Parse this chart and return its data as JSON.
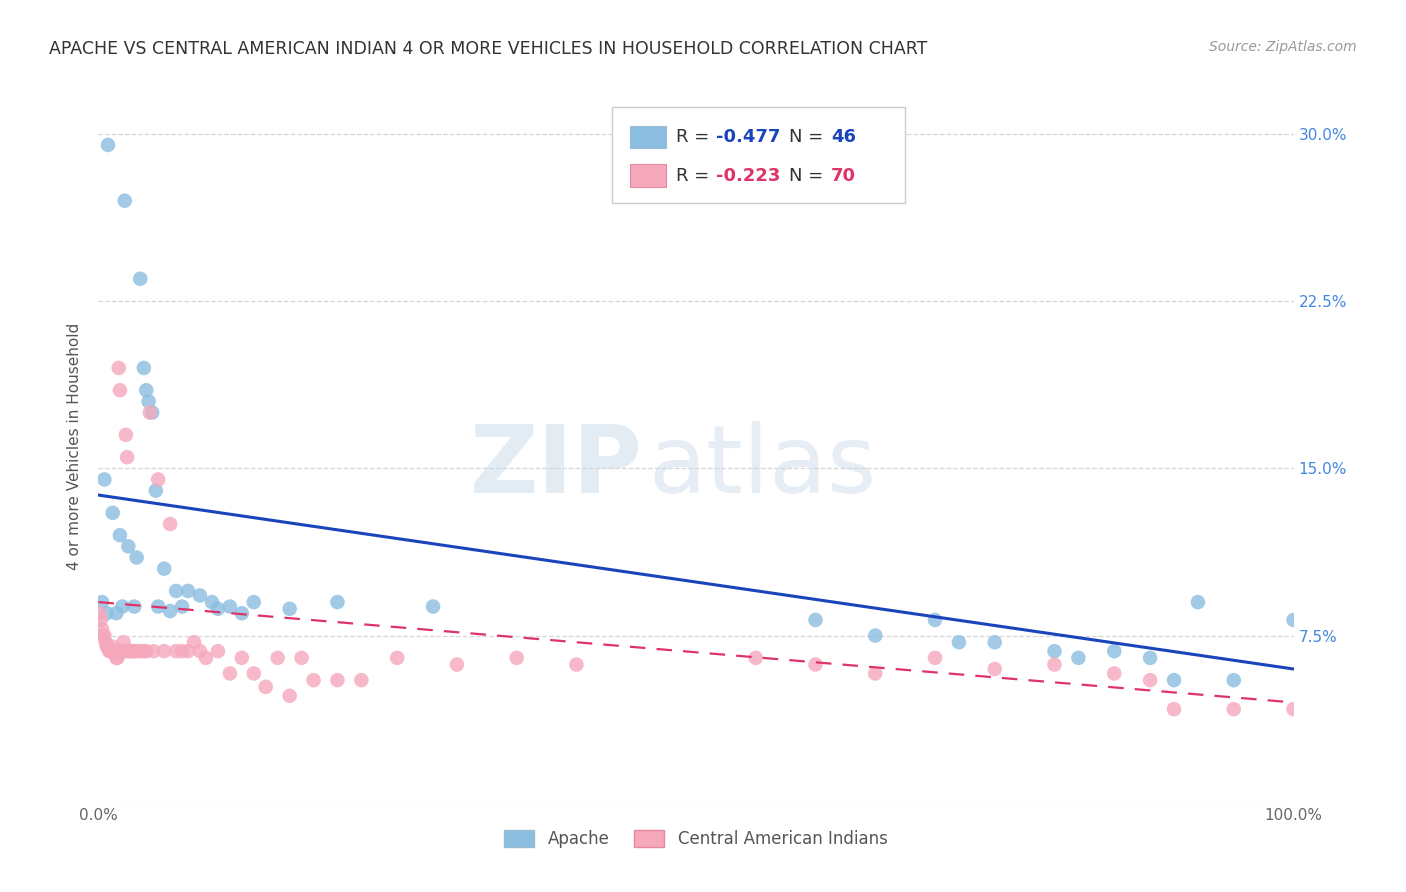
{
  "title": "APACHE VS CENTRAL AMERICAN INDIAN 4 OR MORE VEHICLES IN HOUSEHOLD CORRELATION CHART",
  "source": "Source: ZipAtlas.com",
  "ylabel": "4 or more Vehicles in Household",
  "xlim": [
    0.0,
    1.0
  ],
  "ylim": [
    0.0,
    0.32
  ],
  "xticks": [
    0.0,
    0.25,
    0.5,
    0.75,
    1.0
  ],
  "xticklabels": [
    "0.0%",
    "",
    "",
    "",
    "100.0%"
  ],
  "yticks": [
    0.0,
    0.075,
    0.15,
    0.225,
    0.3
  ],
  "yticklabels_right": [
    "",
    "7.5%",
    "15.0%",
    "22.5%",
    "30.0%"
  ],
  "apache_color": "#8bbde0",
  "central_color": "#f5a8bc",
  "apache_line_color": "#1a44bb",
  "central_line_color": "#dd3366",
  "background_color": "#ffffff",
  "grid_color": "#cccccc",
  "apache_R": -0.477,
  "apache_N": 46,
  "central_R": -0.223,
  "central_N": 70,
  "legend_label_apache": "Apache",
  "legend_label_central": "Central American Indians",
  "apache_x": [
    0.008,
    0.022,
    0.035,
    0.038,
    0.04,
    0.042,
    0.045,
    0.048,
    0.005,
    0.012,
    0.018,
    0.025,
    0.032,
    0.055,
    0.065,
    0.075,
    0.085,
    0.095,
    0.11,
    0.13,
    0.16,
    0.2,
    0.28,
    0.6,
    0.65,
    0.7,
    0.72,
    0.75,
    0.8,
    0.82,
    0.85,
    0.88,
    0.9,
    0.92,
    0.95,
    1.0,
    0.003,
    0.007,
    0.015,
    0.02,
    0.03,
    0.05,
    0.06,
    0.07,
    0.1,
    0.12
  ],
  "apache_y": [
    0.295,
    0.27,
    0.235,
    0.195,
    0.185,
    0.18,
    0.175,
    0.14,
    0.145,
    0.13,
    0.12,
    0.115,
    0.11,
    0.105,
    0.095,
    0.095,
    0.093,
    0.09,
    0.088,
    0.09,
    0.087,
    0.09,
    0.088,
    0.082,
    0.075,
    0.082,
    0.072,
    0.072,
    0.068,
    0.065,
    0.068,
    0.065,
    0.055,
    0.09,
    0.055,
    0.082,
    0.09,
    0.085,
    0.085,
    0.088,
    0.088,
    0.088,
    0.086,
    0.088,
    0.087,
    0.085
  ],
  "central_x": [
    0.001,
    0.002,
    0.003,
    0.004,
    0.005,
    0.006,
    0.007,
    0.008,
    0.009,
    0.01,
    0.011,
    0.012,
    0.013,
    0.014,
    0.015,
    0.016,
    0.017,
    0.018,
    0.019,
    0.02,
    0.021,
    0.022,
    0.023,
    0.024,
    0.025,
    0.026,
    0.027,
    0.028,
    0.03,
    0.032,
    0.035,
    0.038,
    0.04,
    0.043,
    0.046,
    0.05,
    0.055,
    0.06,
    0.065,
    0.07,
    0.075,
    0.08,
    0.085,
    0.09,
    0.1,
    0.11,
    0.12,
    0.13,
    0.14,
    0.15,
    0.16,
    0.17,
    0.18,
    0.2,
    0.22,
    0.25,
    0.3,
    0.35,
    0.55,
    0.6,
    0.65,
    0.7,
    0.75,
    0.8,
    0.85,
    0.88,
    0.9,
    0.95,
    1.0,
    0.4
  ],
  "central_y": [
    0.085,
    0.082,
    0.078,
    0.075,
    0.075,
    0.072,
    0.07,
    0.07,
    0.068,
    0.068,
    0.068,
    0.07,
    0.068,
    0.068,
    0.065,
    0.065,
    0.195,
    0.185,
    0.068,
    0.068,
    0.072,
    0.068,
    0.165,
    0.155,
    0.068,
    0.068,
    0.068,
    0.068,
    0.068,
    0.068,
    0.068,
    0.068,
    0.068,
    0.175,
    0.068,
    0.145,
    0.068,
    0.125,
    0.068,
    0.068,
    0.068,
    0.072,
    0.068,
    0.065,
    0.068,
    0.058,
    0.065,
    0.058,
    0.052,
    0.065,
    0.048,
    0.065,
    0.055,
    0.055,
    0.055,
    0.065,
    0.062,
    0.065,
    0.065,
    0.062,
    0.058,
    0.065,
    0.06,
    0.062,
    0.058,
    0.055,
    0.042,
    0.042,
    0.042,
    0.062
  ],
  "apache_line_x0": 0.0,
  "apache_line_x1": 1.0,
  "apache_line_y0": 0.138,
  "apache_line_y1": 0.06,
  "central_line_x0": 0.0,
  "central_line_x1": 1.0,
  "central_line_y0": 0.09,
  "central_line_y1": 0.045
}
